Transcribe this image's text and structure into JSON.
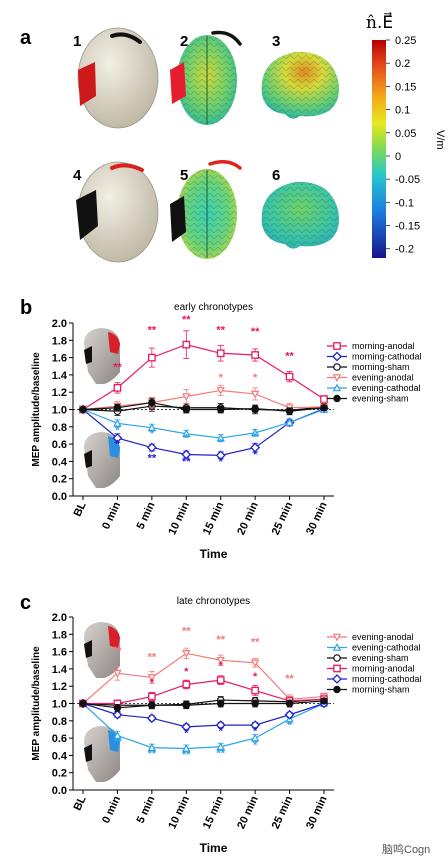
{
  "panel_a": {
    "label": "a",
    "brain_numbers": [
      "1",
      "2",
      "3",
      "4",
      "5",
      "6"
    ],
    "colorbar": {
      "title": "n̂.E⃗",
      "unit": "V/m",
      "ticks": [
        "0.25",
        "0.2",
        "0.15",
        "0.1",
        "0.05",
        "0",
        "-0.05",
        "-0.1",
        "-0.15",
        "-0.2"
      ]
    }
  },
  "colors": {
    "morning_anodal": "#e8195d",
    "morning_cathodal": "#1f24c8",
    "morning_sham": "#111111",
    "evening_anodal": "#f47a78",
    "evening_cathodal": "#2ca4e6",
    "evening_sham": "#111111"
  },
  "chart_data": [
    {
      "type": "line",
      "panel_label": "b",
      "title": "early chronotypes",
      "xlabel": "Time",
      "ylabel": "MEP amplitude/baseline",
      "x": [
        "BL",
        "0 min",
        "5 min",
        "10 min",
        "15 min",
        "20 min",
        "25 min",
        "30 min"
      ],
      "yticks": [
        "0.0",
        "0.2",
        "0.4",
        "0.6",
        "0.8",
        "1.0",
        "1.2",
        "1.4",
        "1.6",
        "1.8",
        "2.0"
      ],
      "ylim": [
        0,
        2.0
      ],
      "baseline": 1.0,
      "legend_position": "right",
      "series": [
        {
          "name": "morning-anodal",
          "key": "morning_anodal",
          "marker": "square",
          "values": [
            1.0,
            1.25,
            1.6,
            1.75,
            1.65,
            1.63,
            1.38,
            1.12
          ],
          "errors": [
            0,
            0.06,
            0.11,
            0.16,
            0.09,
            0.07,
            0.06,
            0.04
          ]
        },
        {
          "name": "morning-cathodal",
          "key": "morning_cathodal",
          "marker": "diamond",
          "values": [
            1.0,
            0.67,
            0.56,
            0.48,
            0.47,
            0.56,
            0.85,
            1.01
          ],
          "errors": [
            0,
            0.05,
            0.04,
            0.04,
            0.04,
            0.05,
            0.04,
            0.03
          ]
        },
        {
          "name": "morning-sham",
          "key": "morning_sham",
          "marker": "circle-open",
          "values": [
            1.0,
            0.98,
            1.04,
            1.02,
            1.02,
            1.0,
            0.99,
            1.03
          ],
          "errors": [
            0,
            0.05,
            0.06,
            0.05,
            0.05,
            0.05,
            0.05,
            0.04
          ]
        },
        {
          "name": "evening-anodal",
          "key": "evening_anodal",
          "marker": "triangle-down-open",
          "values": [
            1.0,
            1.04,
            1.08,
            1.15,
            1.22,
            1.18,
            1.02,
            1.03
          ],
          "errors": [
            0,
            0.05,
            0.06,
            0.08,
            0.06,
            0.07,
            0.05,
            0.05
          ]
        },
        {
          "name": "evening-cathodal",
          "key": "evening_cathodal",
          "marker": "triangle-up-open",
          "values": [
            1.0,
            0.84,
            0.79,
            0.72,
            0.67,
            0.73,
            0.85,
            1.0
          ],
          "errors": [
            0,
            0.04,
            0.04,
            0.04,
            0.04,
            0.04,
            0.04,
            0.03
          ]
        },
        {
          "name": "evening-sham",
          "key": "evening_sham",
          "marker": "circle",
          "values": [
            1.0,
            1.02,
            1.08,
            1.0,
            1.0,
            1.01,
            0.98,
            1.02
          ],
          "errors": [
            0,
            0.04,
            0.05,
            0.04,
            0.04,
            0.04,
            0.04,
            0.03
          ]
        }
      ],
      "annotations": [
        {
          "x": "0 min",
          "y": 1.45,
          "text": "**",
          "key": "morning_anodal"
        },
        {
          "x": "5 min",
          "y": 1.88,
          "text": "**",
          "key": "morning_anodal"
        },
        {
          "x": "10 min",
          "y": 2.0,
          "text": "**",
          "key": "morning_anodal"
        },
        {
          "x": "15 min",
          "y": 1.88,
          "text": "**",
          "key": "morning_anodal"
        },
        {
          "x": "20 min",
          "y": 1.86,
          "text": "**",
          "key": "morning_anodal"
        },
        {
          "x": "25 min",
          "y": 1.58,
          "text": "**",
          "key": "morning_anodal"
        },
        {
          "x": "15 min",
          "y": 1.33,
          "text": "*",
          "key": "evening_anodal"
        },
        {
          "x": "20 min",
          "y": 1.33,
          "text": "*",
          "key": "evening_anodal"
        },
        {
          "x": "0 min",
          "y": 0.72,
          "text": "*",
          "key": "evening_cathodal"
        },
        {
          "x": "5 min",
          "y": 0.68,
          "text": "*",
          "key": "evening_cathodal"
        },
        {
          "x": "10 min",
          "y": 0.63,
          "text": "*",
          "key": "evening_cathodal"
        },
        {
          "x": "15 min",
          "y": 0.58,
          "text": "*",
          "key": "evening_cathodal"
        },
        {
          "x": "20 min",
          "y": 0.65,
          "text": "*",
          "key": "evening_cathodal"
        },
        {
          "x": "0 min",
          "y": 0.56,
          "text": "*",
          "key": "morning_cathodal"
        },
        {
          "x": "5 min",
          "y": 0.4,
          "text": "**",
          "key": "morning_cathodal"
        },
        {
          "x": "10 min",
          "y": 0.36,
          "text": "**",
          "key": "morning_cathodal"
        },
        {
          "x": "15 min",
          "y": 0.36,
          "text": "*",
          "key": "morning_cathodal"
        },
        {
          "x": "20 min",
          "y": 0.44,
          "text": "*",
          "key": "morning_cathodal"
        }
      ]
    },
    {
      "type": "line",
      "panel_label": "c",
      "title": "late chronotypes",
      "xlabel": "Time",
      "ylabel": "MEP amplitude/baseline",
      "x": [
        "BL",
        "0 min",
        "5 min",
        "10 min",
        "15 min",
        "20 min",
        "25 min",
        "30 min"
      ],
      "yticks": [
        "0.0",
        "0.2",
        "0.4",
        "0.6",
        "0.8",
        "1.0",
        "1.2",
        "1.4",
        "1.6",
        "1.8",
        "2.0"
      ],
      "ylim": [
        0,
        2.0
      ],
      "baseline": 1.0,
      "legend_position": "right",
      "series": [
        {
          "name": "evening-anodal",
          "key": "evening_anodal",
          "marker": "triangle-down-open",
          "values": [
            1.0,
            1.35,
            1.3,
            1.58,
            1.5,
            1.47,
            1.05,
            1.08
          ],
          "errors": [
            0,
            0.08,
            0.07,
            0.06,
            0.06,
            0.05,
            0.05,
            0.04
          ]
        },
        {
          "name": "evening-cathodal",
          "key": "evening_cathodal",
          "marker": "triangle-up-open",
          "values": [
            1.0,
            0.63,
            0.49,
            0.48,
            0.5,
            0.6,
            0.82,
            1.0
          ],
          "errors": [
            0,
            0.05,
            0.04,
            0.04,
            0.04,
            0.04,
            0.05,
            0.03
          ]
        },
        {
          "name": "evening-sham",
          "key": "evening_sham",
          "marker": "circle-open",
          "values": [
            1.0,
            0.98,
            0.98,
            0.99,
            1.04,
            1.03,
            1.02,
            1.05
          ],
          "errors": [
            0,
            0.04,
            0.04,
            0.04,
            0.04,
            0.04,
            0.04,
            0.03
          ]
        },
        {
          "name": "morning-anodal",
          "key": "morning_anodal",
          "marker": "square",
          "values": [
            1.0,
            1.0,
            1.08,
            1.22,
            1.27,
            1.15,
            1.03,
            1.05
          ],
          "errors": [
            0,
            0.04,
            0.05,
            0.05,
            0.05,
            0.06,
            0.04,
            0.04
          ]
        },
        {
          "name": "morning-cathodal",
          "key": "morning_cathodal",
          "marker": "diamond",
          "values": [
            1.0,
            0.87,
            0.83,
            0.73,
            0.75,
            0.75,
            0.87,
            1.0
          ],
          "errors": [
            0,
            0.03,
            0.03,
            0.03,
            0.03,
            0.03,
            0.03,
            0.03
          ]
        },
        {
          "name": "morning-sham",
          "key": "morning_sham",
          "marker": "circle",
          "values": [
            1.0,
            0.95,
            0.98,
            0.98,
            1.0,
            1.0,
            1.0,
            1.03
          ],
          "errors": [
            0,
            0.04,
            0.04,
            0.04,
            0.04,
            0.04,
            0.04,
            0.03
          ]
        }
      ],
      "annotations": [
        {
          "x": "0 min",
          "y": 1.57,
          "text": "**",
          "key": "evening_anodal"
        },
        {
          "x": "5 min",
          "y": 1.5,
          "text": "**",
          "key": "evening_anodal"
        },
        {
          "x": "10 min",
          "y": 1.8,
          "text": "**",
          "key": "evening_anodal"
        },
        {
          "x": "15 min",
          "y": 1.7,
          "text": "**",
          "key": "evening_anodal"
        },
        {
          "x": "20 min",
          "y": 1.67,
          "text": "**",
          "key": "evening_anodal"
        },
        {
          "x": "25 min",
          "y": 1.25,
          "text": "**",
          "key": "evening_anodal"
        },
        {
          "x": "5 min",
          "y": 1.2,
          "text": "*",
          "key": "morning_anodal"
        },
        {
          "x": "10 min",
          "y": 1.33,
          "text": "*",
          "key": "morning_anodal"
        },
        {
          "x": "15 min",
          "y": 1.4,
          "text": "*",
          "key": "morning_anodal"
        },
        {
          "x": "20 min",
          "y": 1.27,
          "text": "*",
          "key": "morning_anodal"
        },
        {
          "x": "10 min",
          "y": 0.62,
          "text": "*",
          "key": "morning_cathodal"
        },
        {
          "x": "15 min",
          "y": 0.64,
          "text": "*",
          "key": "morning_cathodal"
        },
        {
          "x": "20 min",
          "y": 0.64,
          "text": "*",
          "key": "morning_cathodal"
        },
        {
          "x": "0 min",
          "y": 0.52,
          "text": "**",
          "key": "evening_cathodal"
        },
        {
          "x": "5 min",
          "y": 0.38,
          "text": "**",
          "key": "evening_cathodal"
        },
        {
          "x": "10 min",
          "y": 0.37,
          "text": "**",
          "key": "evening_cathodal"
        },
        {
          "x": "15 min",
          "y": 0.39,
          "text": "**",
          "key": "evening_cathodal"
        },
        {
          "x": "20 min",
          "y": 0.48,
          "text": "*",
          "key": "evening_cathodal"
        },
        {
          "x": "25 min",
          "y": 0.71,
          "text": "*",
          "key": "evening_cathodal"
        }
      ]
    }
  ],
  "watermark": "脑鸣Cogn"
}
